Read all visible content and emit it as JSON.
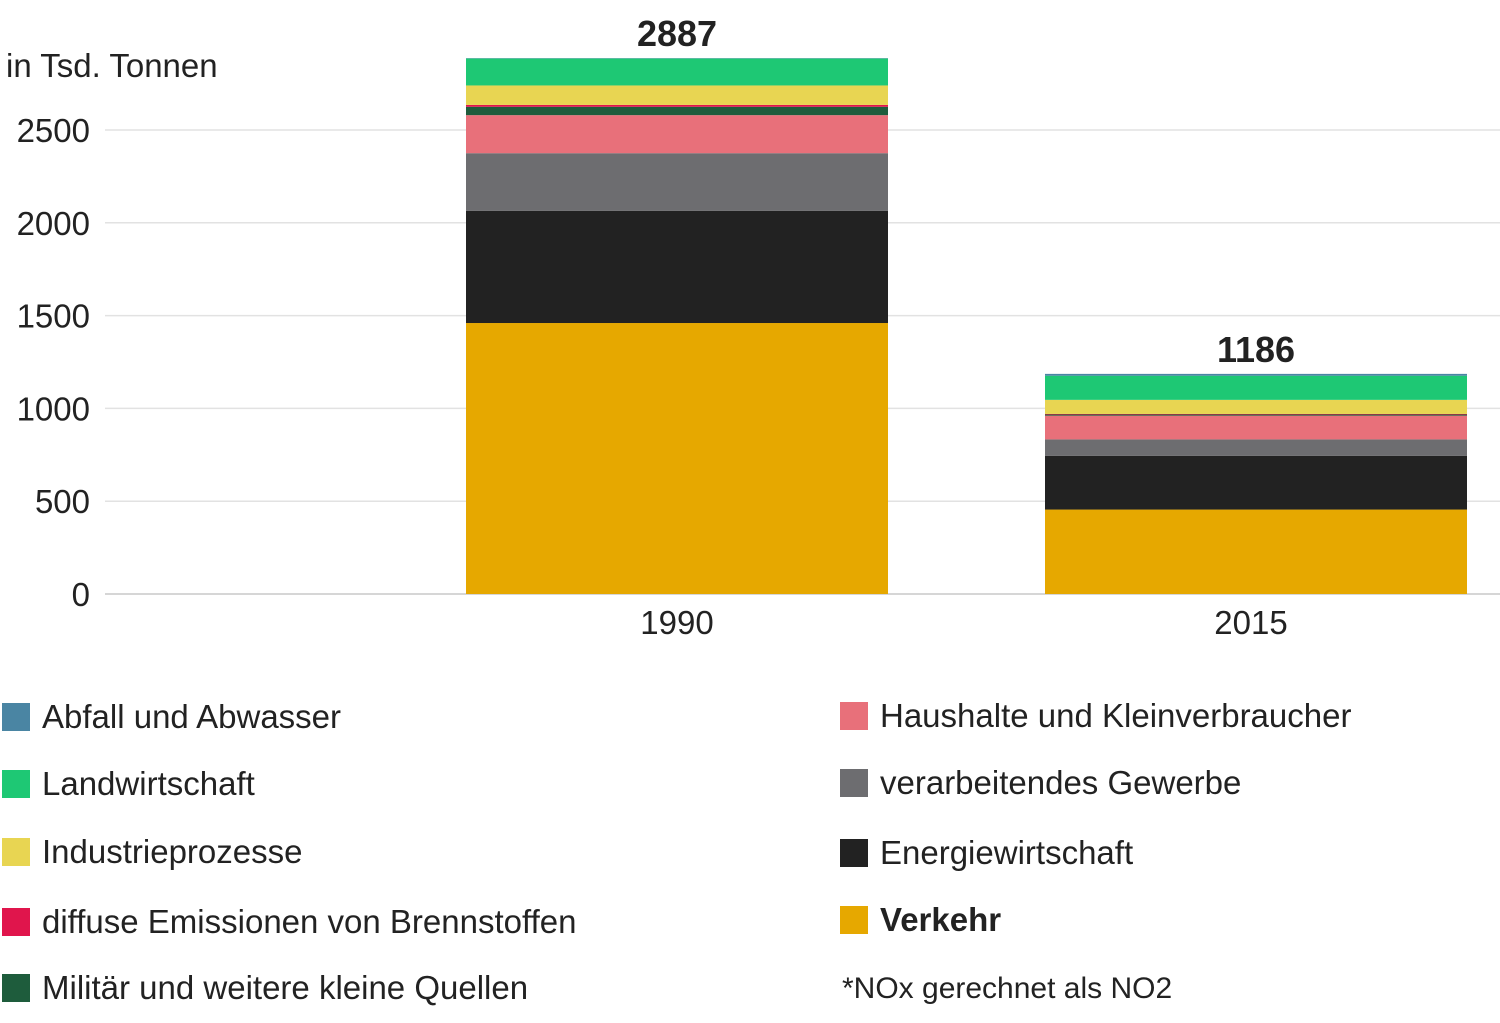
{
  "chart_data": {
    "type": "bar",
    "stacked": true,
    "unit_label": "in Tsd. Tonnen",
    "categories": [
      "1990",
      "2015"
    ],
    "totals": [
      "2887",
      "1186"
    ],
    "ylim": [
      0,
      2900
    ],
    "yticks": [
      0,
      500,
      1000,
      1500,
      2000,
      2500
    ],
    "grid": true,
    "series": [
      {
        "name": "Verkehr",
        "color": "#e6a800",
        "values": [
          1460,
          455
        ]
      },
      {
        "name": "Energiewirtschaft",
        "color": "#222222",
        "values": [
          605,
          290
        ]
      },
      {
        "name": "verarbeitendes Gewerbe",
        "color": "#6d6d70",
        "values": [
          310,
          88
        ]
      },
      {
        "name": "Haushalte und Kleinverbraucher",
        "color": "#e8707a",
        "values": [
          205,
          128
        ]
      },
      {
        "name": "Militär und weitere kleine Quellen",
        "color": "#1e5c3c",
        "values": [
          45,
          6
        ]
      },
      {
        "name": "diffuse Emissionen von Brennstoffen",
        "color": "#e0154c",
        "values": [
          10,
          3
        ]
      },
      {
        "name": "Industrieprozesse",
        "color": "#e8d552",
        "values": [
          105,
          76
        ]
      },
      {
        "name": "Landwirtschaft",
        "color": "#1ec874",
        "values": [
          145,
          130
        ]
      },
      {
        "name": "Abfall und Abwasser",
        "color": "#4a85a3",
        "values": [
          2,
          10
        ]
      }
    ],
    "note": "*NOx gerechnet als NO2"
  },
  "legend": [
    {
      "label": "Abfall und Abwasser",
      "color": "#4a85a3",
      "bold": false
    },
    {
      "label": "Landwirtschaft",
      "color": "#1ec874",
      "bold": false
    },
    {
      "label": "Industrieprozesse",
      "color": "#e8d552",
      "bold": false
    },
    {
      "label": "diffuse Emissionen von Brennstoffen",
      "color": "#e0154c",
      "bold": false
    },
    {
      "label": "Militär und weitere kleine Quellen",
      "color": "#1e5c3c",
      "bold": false
    },
    {
      "label": "Haushalte und Kleinverbraucher",
      "color": "#e8707a",
      "bold": false
    },
    {
      "label": "verarbeitendes Gewerbe",
      "color": "#6d6d70",
      "bold": false
    },
    {
      "label": "Energiewirtschaft",
      "color": "#222222",
      "bold": false
    },
    {
      "label": "Verkehr",
      "color": "#e6a800",
      "bold": true
    }
  ]
}
